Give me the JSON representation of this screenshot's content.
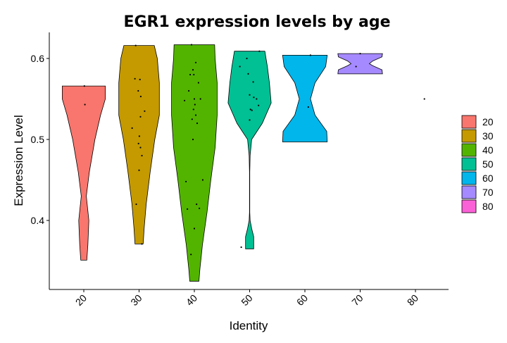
{
  "chart_data": {
    "type": "violin",
    "title": "EGR1 expression levels by age",
    "xlabel": "Identity",
    "ylabel": "Expression Level",
    "categories": [
      "20",
      "30",
      "40",
      "50",
      "60",
      "70",
      "80"
    ],
    "ylim": [
      0.32,
      0.64
    ],
    "yticks": [
      0.4,
      0.5,
      0.6
    ],
    "ytick_labels": [
      "0.4",
      "0.5",
      "0.6"
    ],
    "grid": false,
    "legend_position": "right",
    "series": [
      {
        "name": "20",
        "color": "#F8766D",
        "range": [
          0.351,
          0.566
        ],
        "profile": [
          [
            0.351,
            0.12
          ],
          [
            0.37,
            0.16
          ],
          [
            0.4,
            0.2
          ],
          [
            0.43,
            0.1
          ],
          [
            0.46,
            0.22
          ],
          [
            0.5,
            0.44
          ],
          [
            0.53,
            0.66
          ],
          [
            0.55,
            0.85
          ],
          [
            0.566,
            0.85
          ]
        ],
        "points": [
          [
            0.02,
            0.566
          ],
          [
            0.04,
            0.543
          ]
        ]
      },
      {
        "name": "30",
        "color": "#C49A00",
        "range": [
          0.371,
          0.616
        ],
        "profile": [
          [
            0.371,
            0.16
          ],
          [
            0.39,
            0.2
          ],
          [
            0.42,
            0.28
          ],
          [
            0.46,
            0.44
          ],
          [
            0.5,
            0.62
          ],
          [
            0.53,
            0.8
          ],
          [
            0.57,
            0.8
          ],
          [
            0.6,
            0.72
          ],
          [
            0.616,
            0.6
          ]
        ],
        "points": [
          [
            0.03,
            0.574
          ],
          [
            0.06,
            0.553
          ],
          [
            0.05,
            0.528
          ],
          [
            0.01,
            0.504
          ],
          [
            -0.02,
            0.495
          ],
          [
            0.0,
            0.462
          ],
          [
            0.1,
            0.371
          ],
          [
            -0.1,
            0.42
          ],
          [
            -0.12,
            0.616
          ],
          [
            -0.25,
            0.514
          ],
          [
            0.1,
            0.48
          ],
          [
            0.2,
            0.535
          ],
          [
            -0.15,
            0.575
          ],
          [
            -0.03,
            0.56
          ],
          [
            0.05,
            0.49
          ]
        ]
      },
      {
        "name": "40",
        "color": "#53B400",
        "range": [
          0.325,
          0.617
        ],
        "profile": [
          [
            0.325,
            0.18
          ],
          [
            0.34,
            0.22
          ],
          [
            0.37,
            0.32
          ],
          [
            0.41,
            0.5
          ],
          [
            0.45,
            0.65
          ],
          [
            0.49,
            0.82
          ],
          [
            0.53,
            0.9
          ],
          [
            0.57,
            0.9
          ],
          [
            0.6,
            0.82
          ],
          [
            0.617,
            0.8
          ]
        ],
        "points": [
          [
            -0.1,
            0.617
          ],
          [
            0.05,
            0.595
          ],
          [
            -0.05,
            0.586
          ],
          [
            -0.15,
            0.58
          ],
          [
            0.0,
            0.55
          ],
          [
            0.02,
            0.543
          ],
          [
            -0.03,
            0.537
          ],
          [
            -0.08,
            0.525
          ],
          [
            -0.2,
            0.56
          ],
          [
            0.15,
            0.57
          ],
          [
            0.1,
            0.52
          ],
          [
            0.22,
            0.55
          ],
          [
            -0.35,
            0.548
          ],
          [
            0.3,
            0.45
          ],
          [
            -0.3,
            0.448
          ],
          [
            0.18,
            0.415
          ],
          [
            -0.25,
            0.414
          ],
          [
            0.0,
            0.39
          ],
          [
            -0.12,
            0.358
          ],
          [
            0.08,
            0.42
          ],
          [
            -0.05,
            0.5
          ],
          [
            0.05,
            0.53
          ],
          [
            -0.02,
            0.58
          ]
        ]
      },
      {
        "name": "50",
        "color": "#00C094",
        "range": [
          0.365,
          0.609
        ],
        "profile": [
          [
            0.365,
            0.16
          ],
          [
            0.38,
            0.16
          ],
          [
            0.39,
            0.08
          ],
          [
            0.4,
            0.02
          ],
          [
            0.41,
            0.005
          ],
          [
            0.46,
            0.005
          ],
          [
            0.48,
            0.02
          ],
          [
            0.5,
            0.08
          ],
          [
            0.52,
            0.5
          ],
          [
            0.545,
            0.85
          ],
          [
            0.57,
            0.78
          ],
          [
            0.59,
            0.7
          ],
          [
            0.609,
            0.6
          ]
        ],
        "points": [
          [
            0.0,
            0.555
          ],
          [
            0.03,
            0.537
          ],
          [
            0.08,
            0.536
          ],
          [
            0.13,
            0.571
          ],
          [
            -0.05,
            0.581
          ],
          [
            0.15,
            0.552
          ],
          [
            0.32,
            0.542
          ],
          [
            0.0,
            0.524
          ],
          [
            0.35,
            0.609
          ],
          [
            -0.35,
            0.59
          ],
          [
            -0.1,
            0.6
          ],
          [
            -0.3,
            0.367
          ],
          [
            0.25,
            0.55
          ]
        ]
      },
      {
        "name": "60",
        "color": "#00B6EB",
        "range": [
          0.497,
          0.604
        ],
        "profile": [
          [
            0.497,
            0.88
          ],
          [
            0.51,
            0.86
          ],
          [
            0.53,
            0.4
          ],
          [
            0.55,
            0.22
          ],
          [
            0.57,
            0.4
          ],
          [
            0.59,
            0.82
          ],
          [
            0.604,
            0.88
          ]
        ],
        "points": [
          [
            0.2,
            0.604
          ],
          [
            0.12,
            0.54
          ]
        ]
      },
      {
        "name": "70",
        "color": "#A58AFF",
        "range": [
          0.581,
          0.606
        ],
        "profile": [
          [
            0.581,
            0.88
          ],
          [
            0.586,
            0.86
          ],
          [
            0.591,
            0.5
          ],
          [
            0.5935,
            0.36
          ],
          [
            0.597,
            0.5
          ],
          [
            0.602,
            0.86
          ],
          [
            0.606,
            0.88
          ]
        ],
        "points": [
          [
            0.0,
            0.606
          ],
          [
            -0.15,
            0.59
          ]
        ]
      },
      {
        "name": "80",
        "color": "#FB61D7",
        "range": [
          0.55,
          0.55
        ],
        "profile": [],
        "points": [
          [
            0.32,
            0.55
          ]
        ]
      }
    ]
  }
}
